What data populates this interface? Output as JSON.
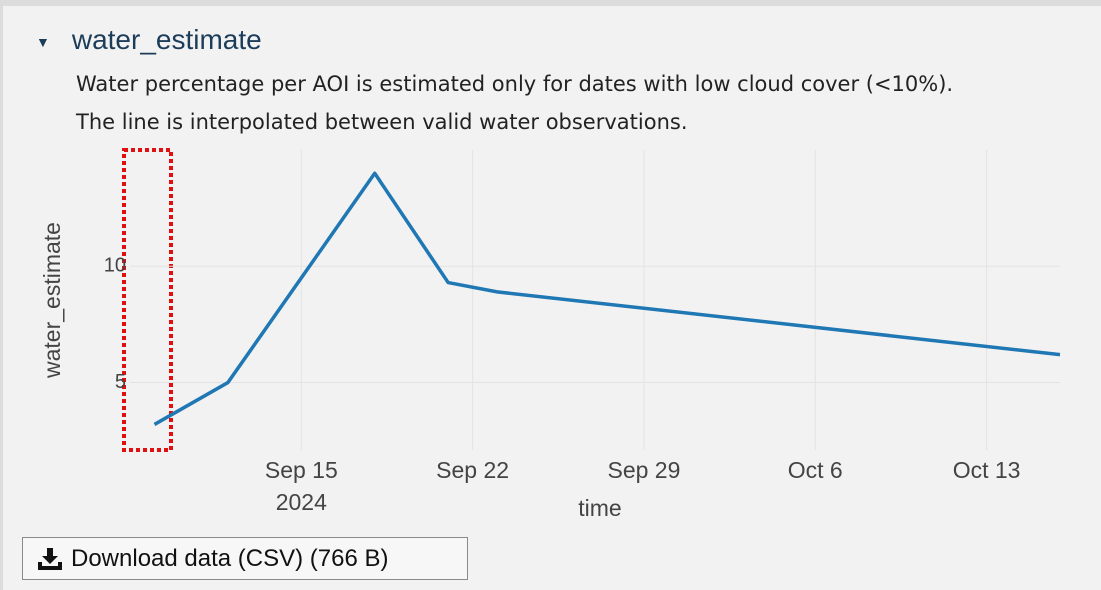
{
  "section": {
    "title": "water_estimate",
    "description": [
      "Water percentage per AOI is estimated only for dates with low cloud cover (<10%).",
      "The line is interpolated between valid water observations."
    ]
  },
  "chart_data": {
    "type": "line",
    "x": [
      "2024-09-09",
      "2024-09-12",
      "2024-09-18",
      "2024-09-21",
      "2024-09-23",
      "2024-10-16"
    ],
    "series": [
      {
        "name": "water_estimate",
        "color": "#1f77b4",
        "values": [
          3.2,
          5.0,
          14.0,
          9.3,
          8.9,
          6.2
        ]
      }
    ],
    "xlim": [
      "2024-09-08",
      "2024-10-16"
    ],
    "xticks": [
      {
        "value": "2024-09-15",
        "label": "Sep 15"
      },
      {
        "value": "2024-09-22",
        "label": "Sep 22"
      },
      {
        "value": "2024-09-29",
        "label": "Sep 29"
      },
      {
        "value": "2024-10-06",
        "label": "Oct 6"
      },
      {
        "value": "2024-10-13",
        "label": "Oct 13"
      }
    ],
    "year_label": "2024",
    "ylim": [
      2.1,
      15
    ],
    "yticks": [
      5,
      10
    ],
    "xlabel": "time",
    "ylabel": "water_estimate",
    "grid": true
  },
  "button": {
    "label": "Download data (CSV) (766 B)"
  }
}
